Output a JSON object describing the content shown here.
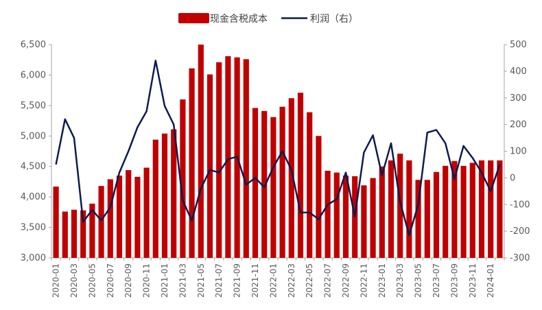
{
  "chart_data": {
    "type": "bar+line",
    "categories": [
      "2020-01",
      "2020-02",
      "2020-03",
      "2020-04",
      "2020-05",
      "2020-06",
      "2020-07",
      "2020-08",
      "2020-09",
      "2020-10",
      "2020-11",
      "2020-12",
      "2021-01",
      "2021-02",
      "2021-03",
      "2021-04",
      "2021-05",
      "2021-06",
      "2021-07",
      "2021-08",
      "2021-09",
      "2021-10",
      "2021-11",
      "2021-12",
      "2022-01",
      "2022-02",
      "2022-03",
      "2022-04",
      "2022-05",
      "2022-06",
      "2022-07",
      "2022-08",
      "2022-09",
      "2022-10",
      "2022-11",
      "2022-12",
      "2023-01",
      "2023-02",
      "2023-03",
      "2023-04",
      "2023-05",
      "2023-06",
      "2023-07",
      "2023-08",
      "2023-09",
      "2023-10",
      "2023-11",
      "2023-12",
      "2024-01",
      "2024-02"
    ],
    "x_tick_labels": [
      "2020-01",
      "2020-03",
      "2020-05",
      "2020-07",
      "2020-09",
      "2020-11",
      "2021-01",
      "2021-03",
      "2021-05",
      "2021-07",
      "2021-09",
      "2021-11",
      "2022-01",
      "2022-03",
      "2022-05",
      "2022-07",
      "2022-09",
      "2022-11",
      "2023-01",
      "2023-03",
      "2023-05",
      "2023-07",
      "2023-09",
      "2023-11",
      "2024-01"
    ],
    "series": [
      {
        "name": "现金含税成本",
        "type": "bar",
        "axis": "left",
        "color": "#c00000",
        "values": [
          4170,
          3760,
          3790,
          3780,
          3890,
          4180,
          4290,
          4350,
          4440,
          4330,
          4480,
          4940,
          5040,
          5110,
          5600,
          6110,
          6500,
          6010,
          6210,
          6310,
          6290,
          6260,
          5460,
          5410,
          5310,
          5480,
          5620,
          5710,
          5390,
          5000,
          4430,
          4400,
          4350,
          4340,
          4190,
          4310,
          4500,
          4600,
          4710,
          4600,
          4280,
          4280,
          4410,
          4510,
          4590,
          4510,
          4560,
          4600,
          4600,
          4600
        ]
      },
      {
        "name": "利润（右）",
        "type": "line",
        "axis": "right",
        "color": "#0d1b4f",
        "values": [
          50,
          220,
          150,
          -165,
          -120,
          -160,
          -110,
          20,
          100,
          190,
          250,
          440,
          270,
          200,
          -85,
          -160,
          -40,
          30,
          20,
          70,
          80,
          -25,
          0,
          -35,
          40,
          100,
          30,
          -130,
          -130,
          -155,
          -100,
          -80,
          20,
          -145,
          95,
          160,
          10,
          130,
          -90,
          -215,
          -100,
          170,
          180,
          130,
          -5,
          120,
          75,
          20,
          -50,
          50
        ]
      }
    ],
    "y_left": {
      "ticks": [
        "3,000",
        "3,500",
        "4,000",
        "4,500",
        "5,000",
        "5,500",
        "6,000",
        "6,500"
      ],
      "range": [
        3000,
        6500
      ]
    },
    "y_right": {
      "ticks": [
        "-300",
        "-200",
        "-100",
        "0",
        "100",
        "200",
        "300",
        "400",
        "500"
      ],
      "range": [
        -300,
        500
      ]
    },
    "legend_position": "top-center"
  }
}
